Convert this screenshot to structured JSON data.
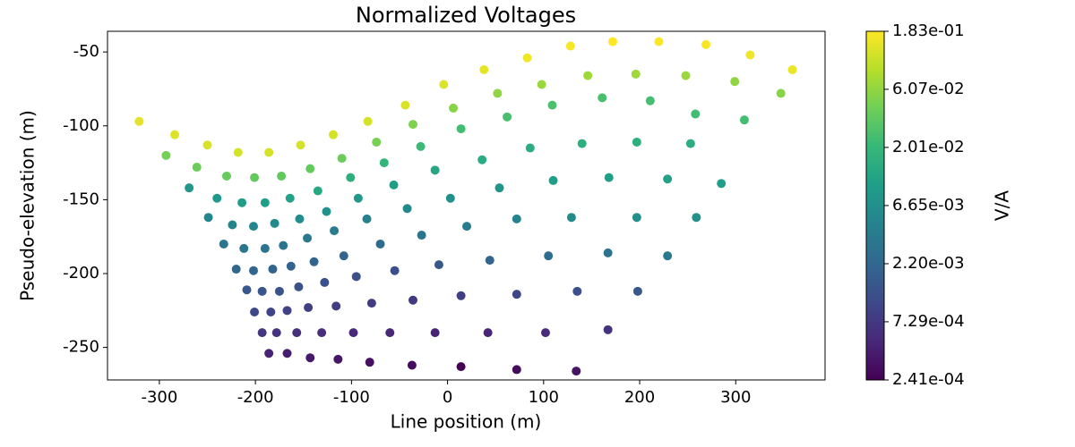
{
  "chart_data": {
    "type": "scatter",
    "title": "Normalized Voltages",
    "xlabel": "Line position (m)",
    "ylabel": "Pseudo-elevation (m)",
    "colormap": "viridis",
    "x": [
      -321,
      -284,
      -250,
      -218,
      -186,
      -153,
      -119,
      -83,
      -44,
      -4,
      38,
      83,
      128,
      172,
      220,
      269,
      315,
      359,
      -293,
      -261,
      -230,
      -201,
      -173,
      -143,
      -110,
      -74,
      -36,
      6,
      52,
      98,
      146,
      196,
      248,
      299,
      347,
      -269,
      -240,
      -214,
      -190,
      -164,
      -135,
      -101,
      -66,
      -28,
      14,
      62,
      109,
      161,
      211,
      258,
      309,
      -249,
      -224,
      -202,
      -180,
      -154,
      -126,
      -93,
      -56,
      -13,
      36,
      86,
      140,
      197,
      253,
      -233,
      -212,
      -190,
      -171,
      -146,
      -118,
      -84,
      -42,
      3,
      54,
      110,
      168,
      229,
      285,
      -220,
      -202,
      -182,
      -163,
      -139,
      -108,
      -70,
      -27,
      20,
      72,
      129,
      197,
      259,
      -209,
      -193,
      -175,
      -155,
      -128,
      -95,
      -55,
      -9,
      44,
      105,
      167,
      229,
      -201,
      -184,
      -167,
      -145,
      -116,
      -79,
      -36,
      14,
      72,
      135,
      198,
      -193,
      -178,
      -157,
      -131,
      -98,
      -60,
      -13,
      42,
      102,
      167,
      -186,
      -167,
      -143,
      -114,
      -81,
      -37,
      14,
      72,
      134
    ],
    "y": [
      -97,
      -106,
      -113,
      -118,
      -118,
      -113,
      -106,
      -97,
      -86,
      -72,
      -62,
      -54,
      -46,
      -43,
      -43,
      -45,
      -52,
      -62,
      -120,
      -128,
      -134,
      -135,
      -134,
      -129,
      -122,
      -111,
      -99,
      -88,
      -78,
      -72,
      -66,
      -65,
      -66,
      -70,
      -78,
      -142,
      -149,
      -152,
      -152,
      -149,
      -144,
      -135,
      -125,
      -114,
      -102,
      -94,
      -86,
      -81,
      -83,
      -92,
      -96,
      -162,
      -167,
      -168,
      -166,
      -163,
      -158,
      -149,
      -140,
      -130,
      -123,
      -115,
      -112,
      -111,
      -112,
      -180,
      -183,
      -183,
      -181,
      -176,
      -171,
      -163,
      -156,
      -149,
      -142,
      -137,
      -135,
      -136,
      -139,
      -197,
      -198,
      -197,
      -195,
      -192,
      -188,
      -180,
      -174,
      -168,
      -163,
      -162,
      -162,
      -162,
      -211,
      -212,
      -212,
      -209,
      -206,
      -202,
      -198,
      -194,
      -191,
      -188,
      -186,
      -188,
      -226,
      -226,
      -225,
      -223,
      -222,
      -220,
      -218,
      -215,
      -214,
      -212,
      -212,
      -240,
      -240,
      -240,
      -240,
      -240,
      -240,
      -240,
      -240,
      -240,
      -238,
      -254,
      -254,
      -257,
      -258,
      -260,
      -262,
      -263,
      -265,
      -266
    ],
    "values": [
      0.14,
      0.13,
      0.125,
      0.12,
      0.12,
      0.12,
      0.12,
      0.12,
      0.125,
      0.13,
      0.145,
      0.16,
      0.17,
      0.183,
      0.18,
      0.17,
      0.16,
      0.15,
      0.045,
      0.04,
      0.038,
      0.036,
      0.036,
      0.037,
      0.04,
      0.045,
      0.05,
      0.055,
      0.06,
      0.065,
      0.07,
      0.07,
      0.065,
      0.06,
      0.055,
      0.008,
      0.0085,
      0.009,
      0.01,
      0.011,
      0.013,
      0.016,
      0.019,
      0.022,
      0.024,
      0.026,
      0.027,
      0.026,
      0.025,
      0.024,
      0.024,
      0.005,
      0.005,
      0.0052,
      0.0055,
      0.006,
      0.007,
      0.0085,
      0.01,
      0.012,
      0.014,
      0.015,
      0.016,
      0.016,
      0.015,
      0.0033,
      0.0032,
      0.0032,
      0.0033,
      0.0035,
      0.0039,
      0.0045,
      0.0055,
      0.0068,
      0.008,
      0.0095,
      0.01,
      0.0105,
      0.01,
      0.0022,
      0.0021,
      0.002,
      0.002,
      0.002,
      0.0021,
      0.0024,
      0.003,
      0.0038,
      0.0048,
      0.0058,
      0.0065,
      0.0068,
      0.0015,
      0.0014,
      0.00135,
      0.0013,
      0.00125,
      0.0012,
      0.00125,
      0.0015,
      0.002,
      0.0025,
      0.003,
      0.0035,
      0.001,
      0.00095,
      0.0009,
      0.00085,
      0.0008,
      0.00078,
      0.00076,
      0.00085,
      0.001,
      0.0012,
      0.0015,
      0.0007,
      0.00065,
      0.0006,
      0.00056,
      0.00052,
      0.00049,
      0.00046,
      0.00048,
      0.00055,
      0.00065,
      0.00046,
      0.00042,
      0.00038,
      0.00035,
      0.00032,
      0.0003,
      0.000241,
      0.00029,
      0.00033
    ],
    "xlim": [
      -354,
      393
    ],
    "ylim": [
      -272,
      -36
    ],
    "xticks": [
      -300,
      -200,
      -100,
      0,
      100,
      200,
      300
    ],
    "yticks": [
      -250,
      -200,
      -150,
      -100,
      -50
    ],
    "colorbar": {
      "label": "V/A",
      "log": true,
      "lim": [
        0.000241,
        0.183
      ],
      "ticks": [
        {
          "value": 0.000241,
          "label": "2.41e-04"
        },
        {
          "value": 0.000729,
          "label": "7.29e-04"
        },
        {
          "value": 0.0022,
          "label": "2.20e-03"
        },
        {
          "value": 0.00665,
          "label": "6.65e-03"
        },
        {
          "value": 0.0201,
          "label": "2.01e-02"
        },
        {
          "value": 0.0607,
          "label": "6.07e-02"
        },
        {
          "value": 0.183,
          "label": "1.83e-01"
        }
      ]
    }
  }
}
